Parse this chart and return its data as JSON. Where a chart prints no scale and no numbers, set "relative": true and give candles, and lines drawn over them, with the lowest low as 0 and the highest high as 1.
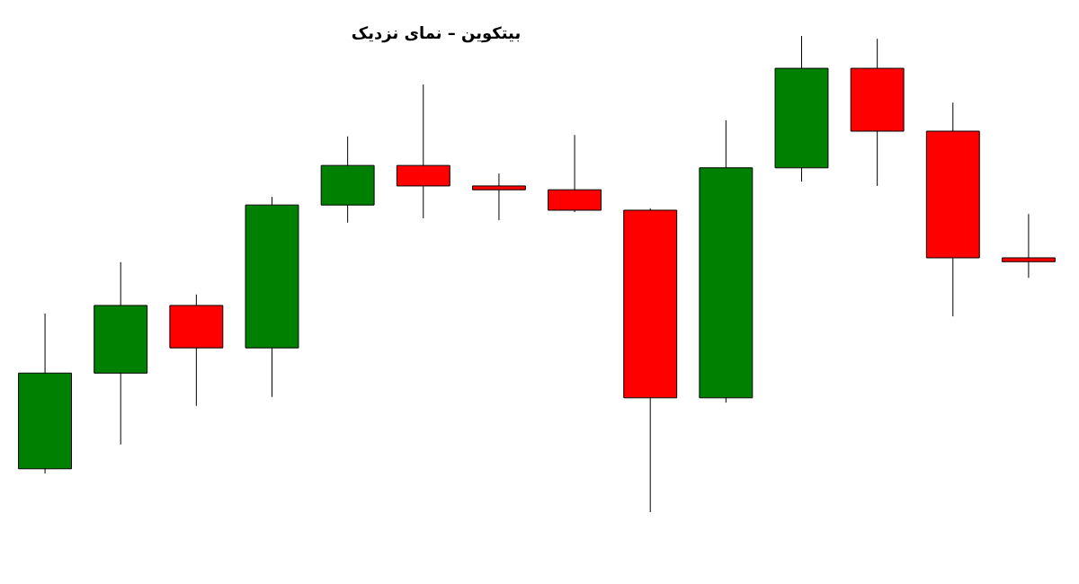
{
  "chart_data": {
    "type": "candlestick",
    "title": "بیتکوین – نمای نزدیک",
    "relative": true,
    "categories": [
      null,
      null,
      null,
      null,
      null,
      null,
      null,
      null,
      null,
      null,
      null,
      null,
      null,
      null
    ],
    "ohlc": [
      [
        0.091,
        0.417,
        0.081,
        0.292
      ],
      [
        0.292,
        0.525,
        0.142,
        0.434
      ],
      [
        0.434,
        0.457,
        0.223,
        0.345
      ],
      [
        0.345,
        0.662,
        0.242,
        0.645
      ],
      [
        0.645,
        0.789,
        0.608,
        0.728
      ],
      [
        0.728,
        0.898,
        0.617,
        0.685
      ],
      [
        0.685,
        0.711,
        0.613,
        0.677
      ],
      [
        0.677,
        0.792,
        0.63,
        0.634
      ],
      [
        0.634,
        0.638,
        0,
        0.24
      ],
      [
        0.24,
        0.823,
        0.23,
        0.723
      ],
      [
        0.723,
        1,
        0.694,
        0.932
      ],
      [
        0.932,
        0.994,
        0.685,
        0.8
      ],
      [
        0.8,
        0.86,
        0.411,
        0.534
      ],
      [
        0.534,
        0.626,
        0.492,
        0.526
      ]
    ],
    "colors": [
      "#008000",
      "#008000",
      "#ff0000",
      "#008000",
      "#008000",
      "#ff0000",
      "#ff0000",
      "#ff0000",
      "#ff0000",
      "#008000",
      "#008000",
      "#ff0000",
      "#ff0000",
      "#ff0000"
    ]
  }
}
